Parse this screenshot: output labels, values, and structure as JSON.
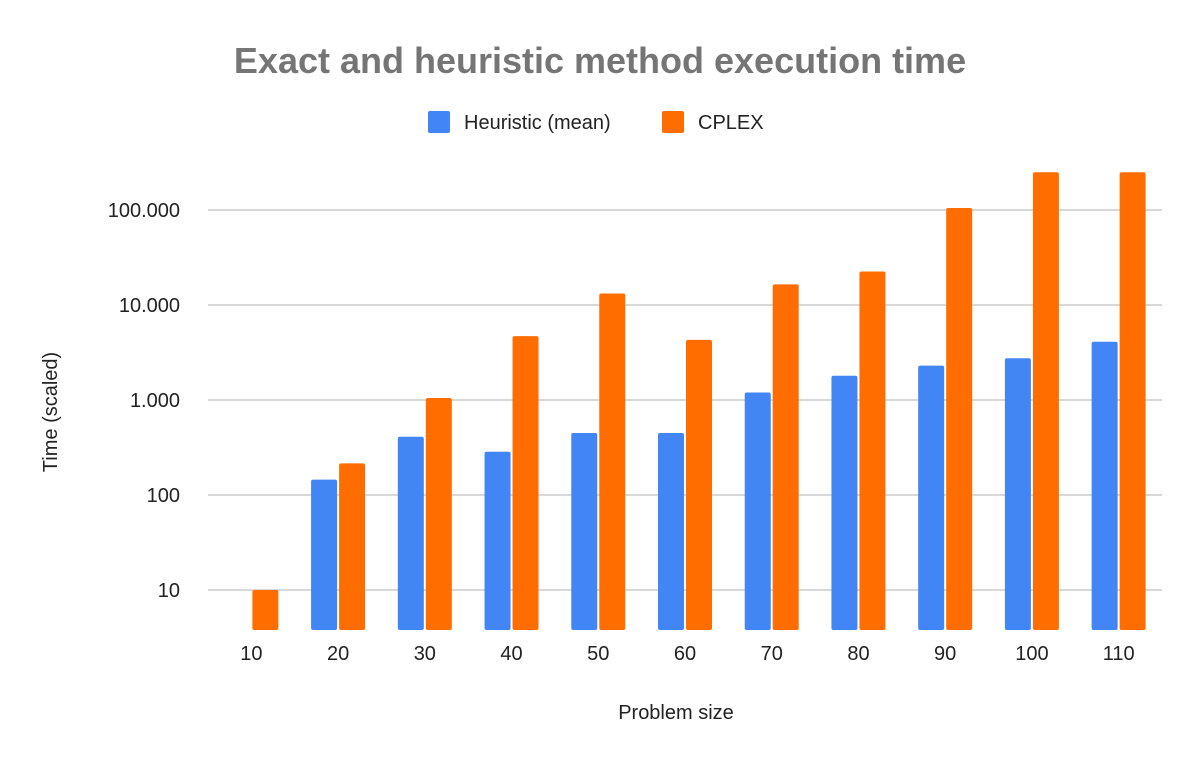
{
  "chart_data": {
    "type": "bar",
    "title": "Exact and heuristic method execution time",
    "xlabel": "Problem size",
    "ylabel": "Time (scaled)",
    "y_scale": "log",
    "ylim": [
      4,
      300000
    ],
    "y_ticks": [
      10,
      100,
      1000,
      10000,
      100000
    ],
    "y_tick_labels": [
      "10",
      "100",
      "1.000",
      "10.000",
      "100.000"
    ],
    "grid": true,
    "legend_position": "top-center",
    "categories": [
      "10",
      "20",
      "30",
      "40",
      "50",
      "60",
      "70",
      "80",
      "90",
      "100",
      "110"
    ],
    "series": [
      {
        "name": "Heuristic (mean)",
        "color": "#4285f4",
        "values": [
          null,
          145,
          410,
          285,
          450,
          450,
          1200,
          1800,
          2300,
          2750,
          4100
        ]
      },
      {
        "name": "CPLEX",
        "color": "#ff6d01",
        "values": [
          10,
          215,
          1050,
          4700,
          13200,
          4300,
          16500,
          22500,
          105000,
          250000,
          250000
        ]
      }
    ]
  }
}
